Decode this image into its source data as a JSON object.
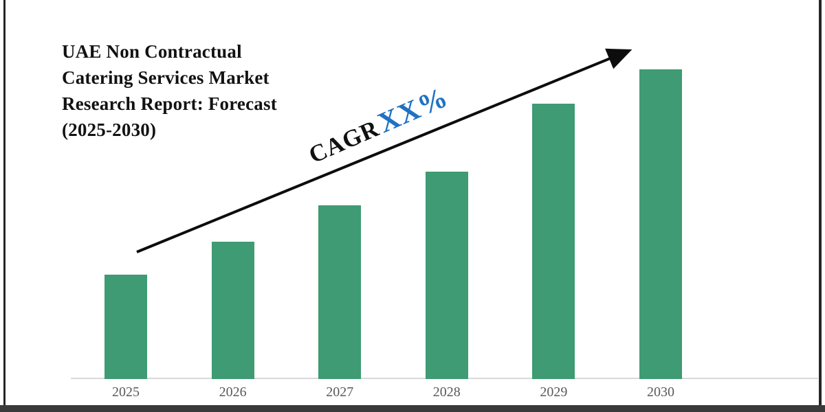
{
  "title": {
    "full": "UAE Non Contractual Catering Services Market Research Report: Forecast (2025-2030)",
    "lines": [
      "UAE Non Contractual",
      "Catering Services Market",
      "Research Report: Forecast",
      "(2025-2030)"
    ]
  },
  "annotation": {
    "cagr_label": "CAGR",
    "cagr_value": "XX%"
  },
  "chart_data": {
    "type": "bar",
    "title": "UAE Non Contractual Catering Services Market Research Report: Forecast (2025-2030)",
    "categories": [
      "2025",
      "2026",
      "2027",
      "2028",
      "2029",
      "2030"
    ],
    "values": [
      33.7,
      44.3,
      56.1,
      67.0,
      88.9,
      100
    ],
    "xlabel": "",
    "ylabel": "",
    "y_axis_visible": false,
    "gridlines": false,
    "legend": false,
    "annotations": [
      {
        "text": "CAGR XX%",
        "placement": "rotated along upward trend arrow"
      }
    ],
    "trend_arrow": {
      "from": "above 2025 bar",
      "to": "above 2030 bar",
      "direction": "up-right"
    }
  },
  "colors": {
    "bar": "#3e9b73",
    "axis_line": "#d9d9d9",
    "tick_label": "#595959",
    "annotation_blue": "#1f72c4",
    "annotation_black": "#111111",
    "arrow": "#0d0d0d",
    "frame": "#2f2f2f"
  }
}
